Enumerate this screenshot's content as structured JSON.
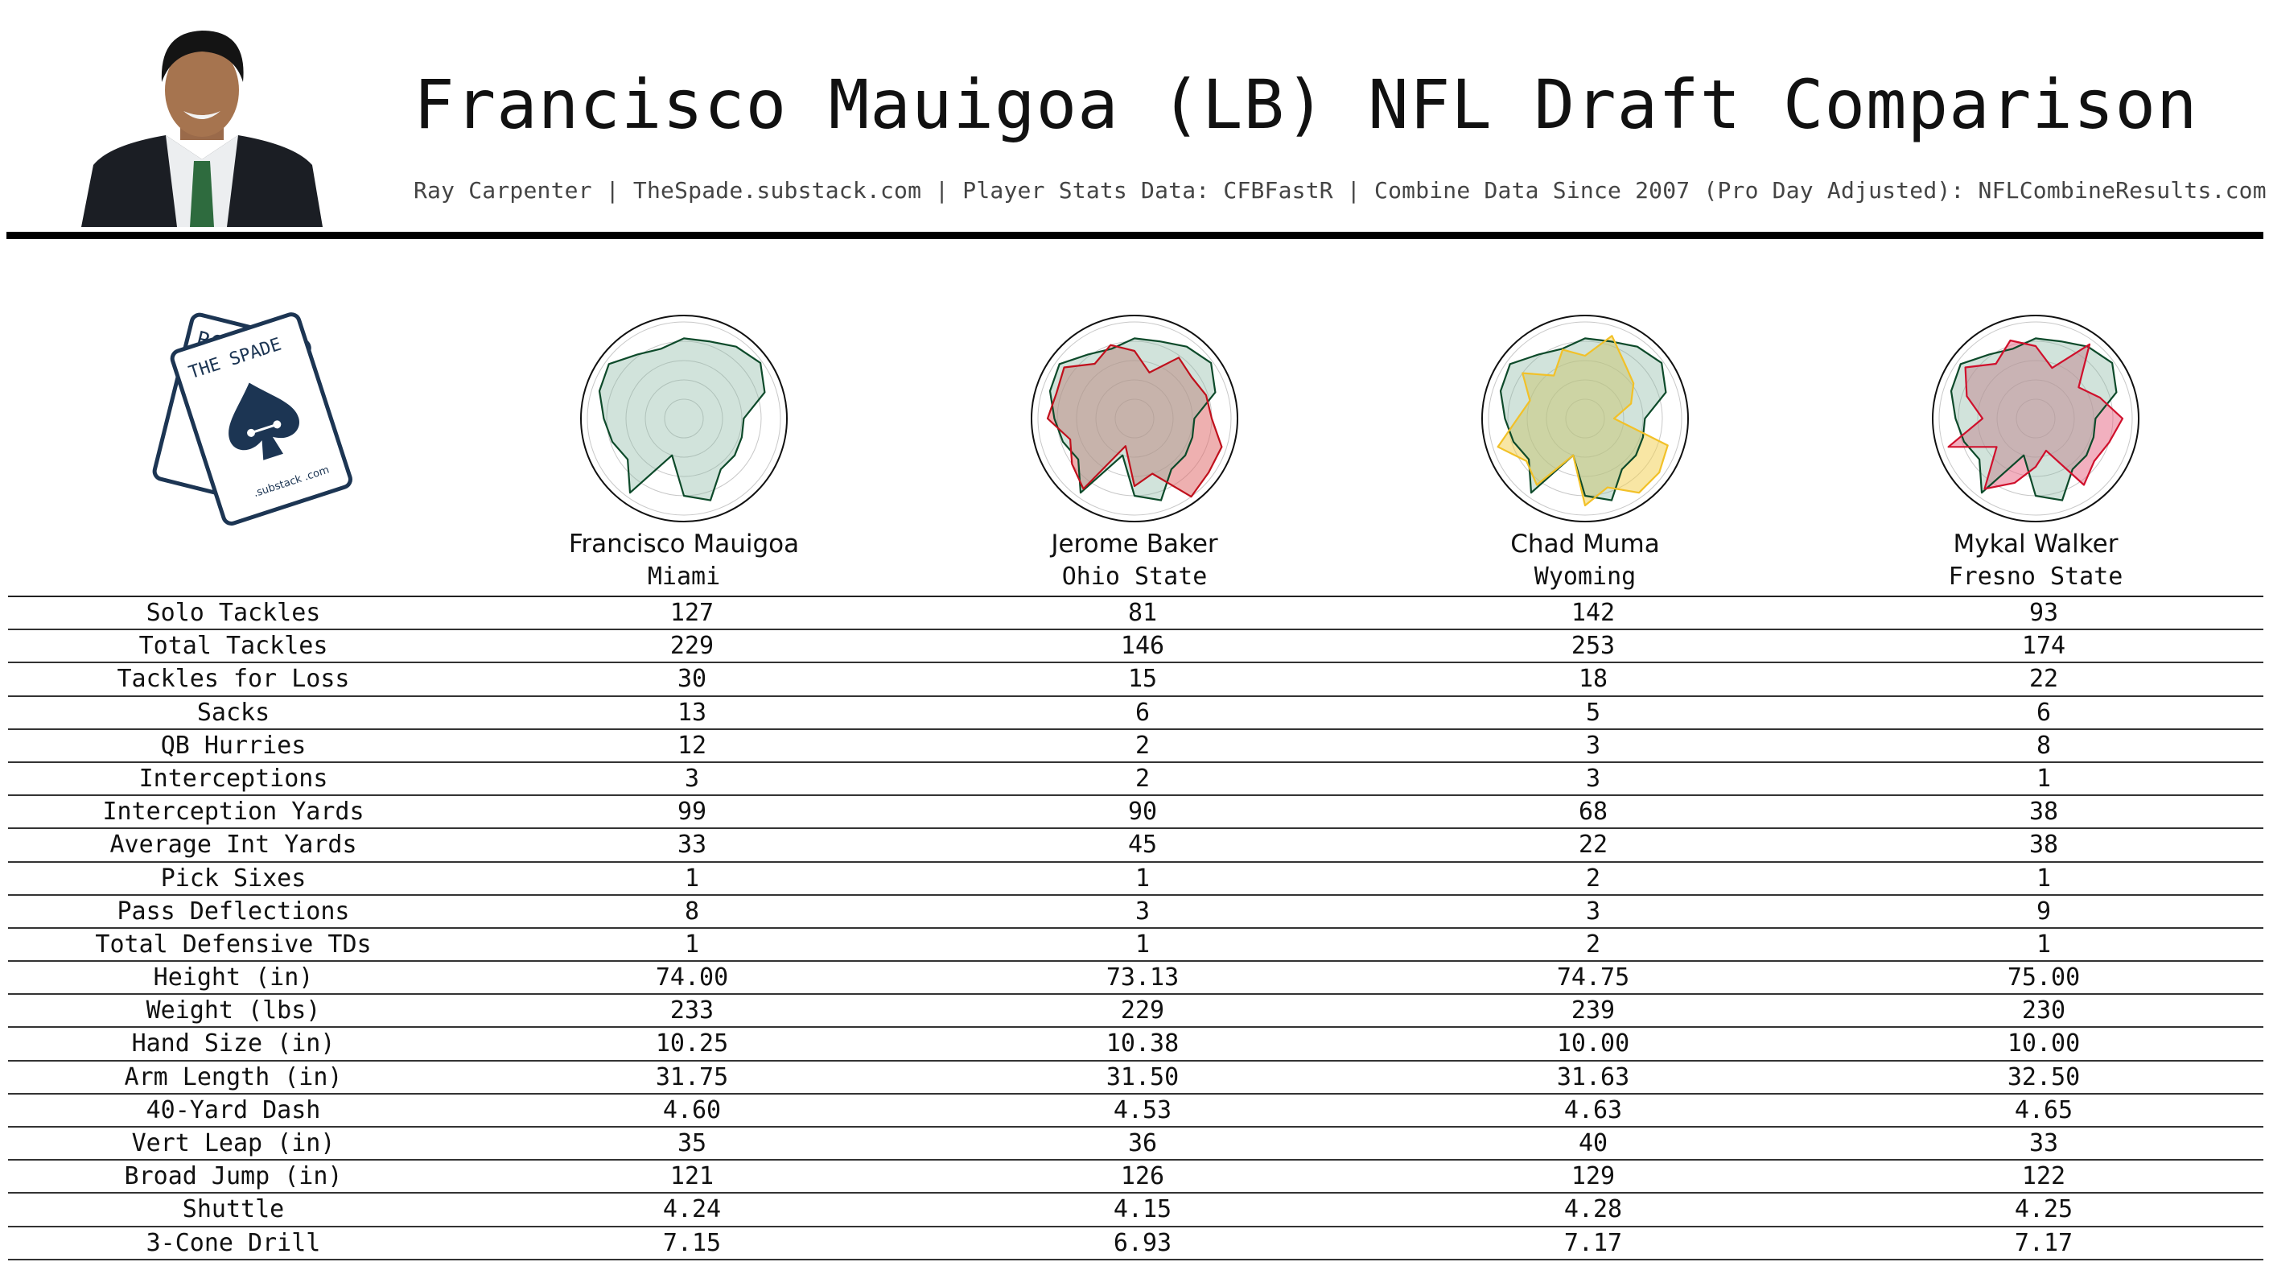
{
  "header": {
    "title": "Francisco Mauigoa (LB) NFL Draft Comparison",
    "subtitle": "Ray Carpenter | TheSpade.substack.com | Player Stats Data: CFBFastR | Combine Data Since 2007 (Pro Day Adjusted): NFLCombineResults.com"
  },
  "logo": {
    "card_back_text": "RC",
    "card_front_text": "THE SPADE",
    "domain_text": ".substack .com"
  },
  "colors": {
    "primary_fill": "#8db8a6",
    "primary_stroke": "#0d4a2a",
    "comparison_strokes": [
      "#c0101c",
      "#f2c128",
      "#d0102c"
    ],
    "comparison_fills": [
      "#e07070",
      "#f2d25a",
      "#e8708a"
    ]
  },
  "chart_data": {
    "type": "table",
    "columns": [
      {
        "name": "Francisco Mauigoa",
        "school": "Miami"
      },
      {
        "name": "Jerome Baker",
        "school": "Ohio State"
      },
      {
        "name": "Chad Muma",
        "school": "Wyoming"
      },
      {
        "name": "Mykal Walker",
        "school": "Fresno State"
      }
    ],
    "rows": [
      {
        "label": "Solo Tackles",
        "values": [
          "127",
          "81",
          "142",
          "93"
        ]
      },
      {
        "label": "Total Tackles",
        "values": [
          "229",
          "146",
          "253",
          "174"
        ]
      },
      {
        "label": "Tackles for Loss",
        "values": [
          "30",
          "15",
          "18",
          "22"
        ]
      },
      {
        "label": "Sacks",
        "values": [
          "13",
          "6",
          "5",
          "6"
        ]
      },
      {
        "label": "QB Hurries",
        "values": [
          "12",
          "2",
          "3",
          "8"
        ]
      },
      {
        "label": "Interceptions",
        "values": [
          "3",
          "2",
          "3",
          "1"
        ]
      },
      {
        "label": "Interception Yards",
        "values": [
          "99",
          "90",
          "68",
          "38"
        ]
      },
      {
        "label": "Average Int Yards",
        "values": [
          "33",
          "45",
          "22",
          "38"
        ]
      },
      {
        "label": "Pick Sixes",
        "values": [
          "1",
          "1",
          "2",
          "1"
        ]
      },
      {
        "label": "Pass Deflections",
        "values": [
          "8",
          "3",
          "3",
          "9"
        ]
      },
      {
        "label": "Total Defensive TDs",
        "values": [
          "1",
          "1",
          "2",
          "1"
        ]
      },
      {
        "label": "Height (in)",
        "values": [
          "74.00",
          "73.13",
          "74.75",
          "75.00"
        ]
      },
      {
        "label": "Weight (lbs)",
        "values": [
          "233",
          "229",
          "239",
          "230"
        ]
      },
      {
        "label": "Hand Size (in)",
        "values": [
          "10.25",
          "10.38",
          "10.00",
          "10.00"
        ]
      },
      {
        "label": "Arm Length (in)",
        "values": [
          "31.75",
          "31.50",
          "31.63",
          "32.50"
        ]
      },
      {
        "label": "40-Yard Dash",
        "values": [
          "4.60",
          "4.53",
          "4.63",
          "4.65"
        ]
      },
      {
        "label": "Vert Leap (in)",
        "values": [
          "35",
          "36",
          "40",
          "33"
        ]
      },
      {
        "label": "Broad Jump (in)",
        "values": [
          "121",
          "126",
          "129",
          "122"
        ]
      },
      {
        "label": "Shuttle",
        "values": [
          "4.24",
          "4.15",
          "4.28",
          "4.25"
        ]
      },
      {
        "label": "3-Cone Drill",
        "values": [
          "7.15",
          "6.93",
          "7.17",
          "7.17"
        ]
      }
    ],
    "radar": {
      "type": "radar",
      "rmax": 1,
      "rings": 5,
      "profiles": [
        [
          0.83,
          0.84,
          0.92,
          0.98,
          0.88,
          0.62,
          0.63,
          0.65,
          0.65,
          0.89,
          0.8,
          0.4,
          0.95,
          0.72,
          0.78,
          0.83,
          0.92,
          0.96,
          0.82,
          0.76
        ],
        [
          0.7,
          0.5,
          0.78,
          0.73,
          0.78,
          0.8,
          0.95,
          0.95,
          1.0,
          0.6,
          0.7,
          0.3,
          0.9,
          0.8,
          0.7,
          0.9,
          0.85,
          0.9,
          0.7,
          0.8
        ],
        [
          0.65,
          0.9,
          0.7,
          0.62,
          0.5,
          0.3,
          0.9,
          0.95,
          0.95,
          0.75,
          0.9,
          0.4,
          0.85,
          0.75,
          0.95,
          0.7,
          0.6,
          0.8,
          0.55,
          0.75
        ],
        [
          0.75,
          0.55,
          0.95,
          0.55,
          0.7,
          0.9,
          0.8,
          0.75,
          0.85,
          0.35,
          0.5,
          0.7,
          0.9,
          0.5,
          0.95,
          0.55,
          0.75,
          0.9,
          0.7,
          0.85
        ]
      ]
    }
  }
}
